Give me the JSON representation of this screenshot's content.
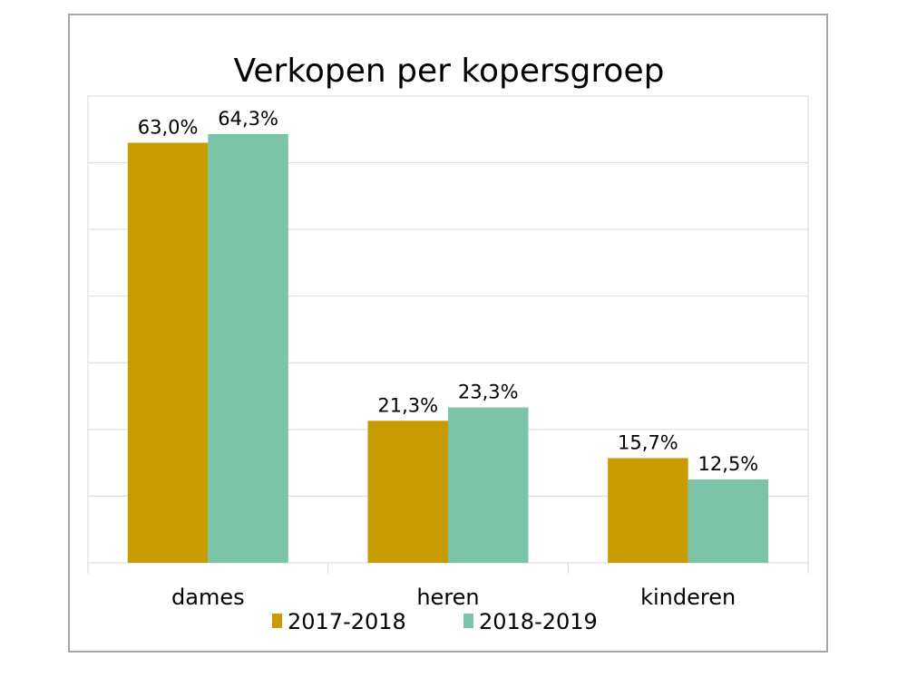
{
  "chart_data": {
    "type": "bar",
    "title": "Verkopen per kopersgroep",
    "categories": [
      "dames",
      "heren",
      "kinderen"
    ],
    "series": [
      {
        "name": "2017-2018",
        "color": "#c89b00",
        "values": [
          63.0,
          21.3,
          15.7
        ],
        "labels": [
          "63,0%",
          "21,3%",
          "15,7%"
        ]
      },
      {
        "name": "2018-2019",
        "color": "#7bc4a8",
        "values": [
          64.3,
          23.3,
          12.5
        ],
        "labels": [
          "64,3%",
          "23,3%",
          "12,5%"
        ]
      }
    ],
    "xlabel": "",
    "ylabel": "",
    "ylim": [
      0,
      70
    ],
    "ytick_step": 10,
    "yaxis_labels_shown": false,
    "grid": true,
    "gridline_color": "#d9d9d9",
    "legend": "bottom"
  }
}
